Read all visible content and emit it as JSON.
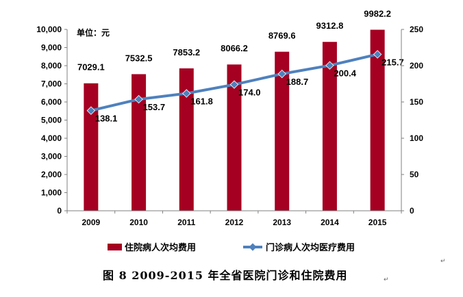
{
  "unit_label": "单位：元",
  "caption": "图 8   2009-2015 年全省医院门诊和住院费用",
  "colors": {
    "bar": "#A50021",
    "line": "#4F81BD",
    "axis": "#7F7F7F"
  },
  "chart_data": {
    "type": "bar",
    "categories": [
      "2009",
      "2010",
      "2011",
      "2012",
      "2013",
      "2014",
      "2015"
    ],
    "series": [
      {
        "name": "住院病人次均费用",
        "type": "bar",
        "axis": "left",
        "values": [
          7029.1,
          7532.5,
          7853.2,
          8066.2,
          8769.6,
          9312.8,
          9982.2
        ],
        "labels": [
          "7029.1",
          "7532.5",
          "7853.2",
          "8066.2",
          "8769.6",
          "9312.8",
          "9982.2"
        ]
      },
      {
        "name": "门诊病人次均医疗费用",
        "type": "line",
        "axis": "right",
        "values": [
          138.1,
          153.7,
          161.8,
          174.0,
          188.7,
          200.4,
          215.7
        ],
        "labels": [
          "138.1",
          "153.7",
          "161.8",
          "174.0",
          "188.7",
          "200.4",
          "215.7"
        ]
      }
    ],
    "left_axis": {
      "ylim": [
        0,
        10000
      ],
      "ticks": [
        "0",
        "1,000",
        "2,000",
        "3,000",
        "4,000",
        "5,000",
        "6,000",
        "7,000",
        "8,000",
        "9,000",
        "10,000"
      ]
    },
    "right_axis": {
      "ylim": [
        0,
        250
      ],
      "ticks": [
        "0",
        "50",
        "100",
        "150",
        "200",
        "250"
      ]
    },
    "grid": false,
    "legend_position": "bottom"
  }
}
